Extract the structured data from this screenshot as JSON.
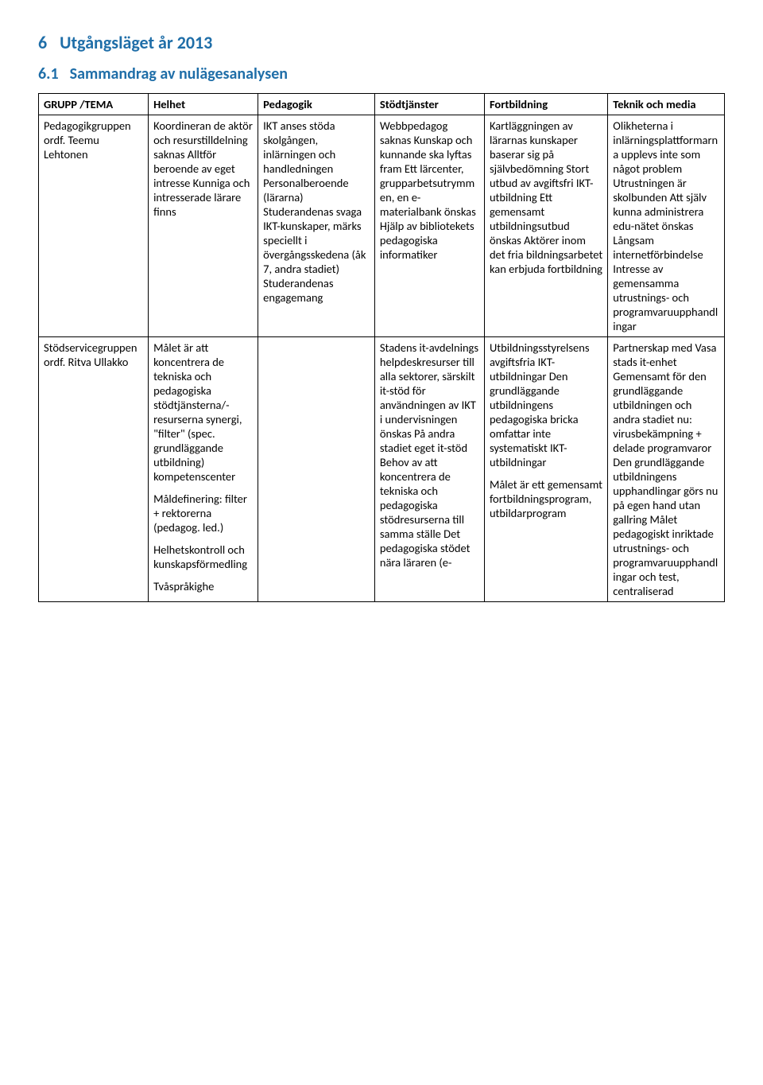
{
  "heading1": {
    "num": "6",
    "text": "Utgångsläget år 2013"
  },
  "heading2": {
    "num": "6.1",
    "text": "Sammandrag av nulägesanalysen"
  },
  "table": {
    "headers": [
      "GRUPP /TEMA",
      "Helhet",
      "Pedagogik",
      "Stödtjänster",
      "Fortbildning",
      "Teknik och media"
    ],
    "rows": [
      {
        "c0": "Pedagogikgruppen ordf. Teemu Lehtonen",
        "c1": "Koordineran de aktör och resurstilldelning saknas Alltför beroende av eget intresse Kunniga och intresserade lärare finns",
        "c2": "IKT anses stöda skolgången, inlärningen och handledningen Personalberoende (lärarna) Studerandenas svaga IKT-kunskaper, märks speciellt i övergångsskedena (åk 7, andra stadiet) Studerandenas engagemang",
        "c3": "Webbpedagog saknas Kunskap och kunnande ska lyftas fram Ett lärcenter, grupparbetsutrymmen, en e-materialbank önskas Hjälp av bibliotekets pedagogiska informatiker",
        "c4": "Kartläggningen av lärarnas kunskaper baserar sig på självbedömning Stort utbud av avgiftsfri IKT-utbildning Ett gemensamt utbildningsutbud önskas Aktörer inom det fria bildningsarbetet kan erbjuda fortbildning",
        "c5": "Olikheterna i inlärningsplattformarna upplevs inte som något problem Utrustningen är skolbunden Att själv kunna administrera edu-nätet önskas Långsam internetförbindelse Intresse av gemensamma utrustnings- och programvaruupphandlingar"
      },
      {
        "c0": "Stödservicegruppen ordf. Ritva Ullakko",
        "c1_p1": "Målet är att koncentrera de tekniska och pedagogiska stödtjänsterna/-resurserna synergi, \"filter\" (spec. grundläggande utbildning) kompetenscenter",
        "c1_p2": "Måldefinering: filter + rektorerna (pedagog. led.)",
        "c1_p3": "Helhetskontroll och kunskapsförmedling",
        "c1_p4": "Tvåspråkighe",
        "c2": "",
        "c3": "Stadens it-avdelnings helpdeskresurser till alla sektorer, särskilt it-stöd för användningen av IKT i undervisningen önskas På andra stadiet eget it-stöd Behov av att koncentrera de tekniska och pedagogiska stödresurserna till samma ställe Det pedagogiska stödet nära läraren (e-",
        "c4_p1": "Utbildningsstyrelsens avgiftsfria IKT-utbildningar Den grundläggande utbildningens pedagogiska bricka omfattar inte systematiskt IKT-utbildningar",
        "c4_p2": "Målet är ett gemensamt fortbildningsprogram, utbildarprogram",
        "c5": "Partnerskap med Vasa stads it-enhet Gemensamt för den grundläggande utbildningen och andra stadiet nu: virusbekämpning + delade programvaror Den grundläggande utbildningens upphandlingar görs nu på egen hand utan gallring Målet pedagogiskt inriktade utrustnings- och programvaruupphandlingar och test, centraliserad"
      }
    ]
  }
}
